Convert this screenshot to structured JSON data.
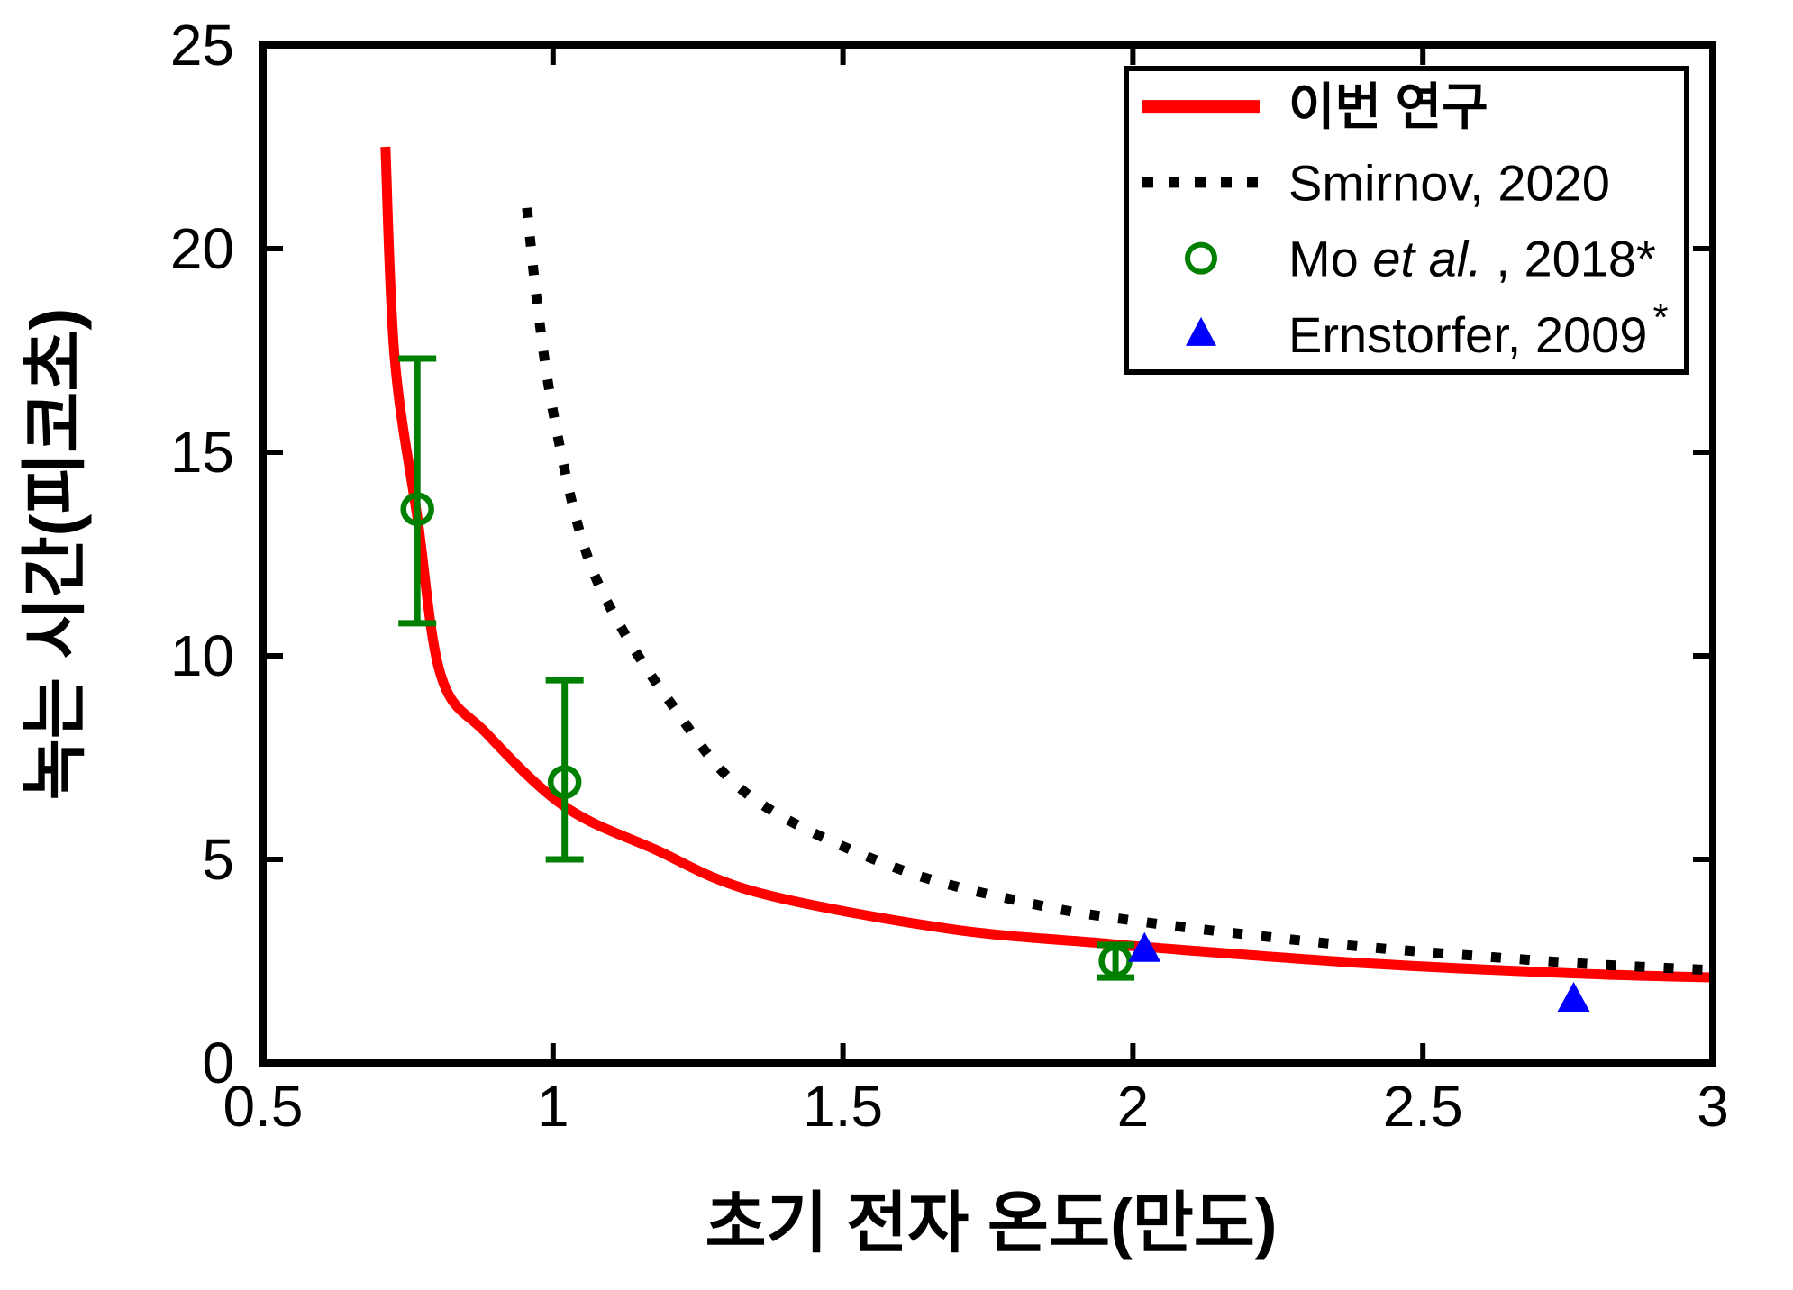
{
  "figure": {
    "background": "#ffffff"
  },
  "colors": {
    "this_study": "#ff0000",
    "smirnov": "#000000",
    "mo": "#008000",
    "ernstorfer": "#0000ff",
    "axis": "#000000"
  },
  "chart_data": {
    "type": "line",
    "title": "",
    "xlabel": "초기 전자 온도(만도)",
    "ylabel": "녹는 시간(피코초)",
    "xlim": [
      0.5,
      3.0
    ],
    "ylim": [
      0,
      25
    ],
    "grid": false,
    "x_tick_values": [
      0.5,
      1,
      1.5,
      2,
      2.5,
      3
    ],
    "x_tick_labels": [
      "0.5",
      "1",
      "1.5",
      "2",
      "2.5",
      "3"
    ],
    "y_tick_values": [
      0,
      5,
      10,
      15,
      20,
      25
    ],
    "y_tick_labels": [
      "0",
      "5",
      "10",
      "15",
      "20",
      "25"
    ],
    "legend": {
      "position": "upper-right",
      "entries": [
        {
          "marker": "line-solid",
          "color": "#ff0000",
          "segments": [
            {
              "text": "이번 연구",
              "bold": true
            }
          ]
        },
        {
          "marker": "line-dotted",
          "color": "#000000",
          "segments": [
            {
              "text": "Smirnov, 2020"
            }
          ]
        },
        {
          "marker": "circle-open",
          "color": "#008000",
          "segments": [
            {
              "text": "Mo "
            },
            {
              "text": "et al.",
              "italic": true
            },
            {
              "text": " , 2018*"
            }
          ]
        },
        {
          "marker": "triangle-filled",
          "color": "#0000ff",
          "segments": [
            {
              "text": "Ernstorfer, 2009"
            },
            {
              "text": "*",
              "super": true
            }
          ]
        }
      ]
    },
    "series": [
      {
        "id": "this-study",
        "name": "이번 연구",
        "type": "line",
        "style": "solid",
        "color": "#ff0000",
        "width": 11,
        "points": [
          [
            0.711,
            22.5
          ],
          [
            0.727,
            17.3
          ],
          [
            0.766,
            13.4
          ],
          [
            0.807,
            9.5
          ],
          [
            0.885,
            8.1
          ],
          [
            1.02,
            6.3
          ],
          [
            1.175,
            5.25
          ],
          [
            1.35,
            4.2
          ],
          [
            1.68,
            3.3
          ],
          [
            1.94,
            2.95
          ],
          [
            2.02,
            2.85
          ],
          [
            2.4,
            2.45
          ],
          [
            2.76,
            2.2
          ],
          [
            3.0,
            2.1
          ]
        ]
      },
      {
        "id": "smirnov-2020",
        "name": "Smirnov, 2020",
        "type": "line",
        "style": "dotted",
        "color": "#000000",
        "width": 11,
        "points": [
          [
            0.955,
            21.0
          ],
          [
            0.974,
            18.5
          ],
          [
            1.0,
            16.0
          ],
          [
            1.045,
            13.1
          ],
          [
            1.098,
            11.2
          ],
          [
            1.2,
            8.9
          ],
          [
            1.34,
            6.55
          ],
          [
            1.59,
            4.8
          ],
          [
            1.83,
            3.9
          ],
          [
            2.0,
            3.5
          ],
          [
            2.2,
            3.15
          ],
          [
            2.4,
            2.85
          ],
          [
            2.62,
            2.6
          ],
          [
            2.8,
            2.42
          ],
          [
            3.0,
            2.28
          ]
        ]
      },
      {
        "id": "mo-2018",
        "name": "Mo et al., 2018*",
        "type": "scatter",
        "marker": "circle-open",
        "color": "#008000",
        "points": [
          [
            0.766,
            13.6
          ],
          [
            1.02,
            6.9
          ],
          [
            1.97,
            2.5
          ]
        ],
        "yerr_low": [
          10.8,
          5.0,
          2.1
        ],
        "yerr_high": [
          17.3,
          9.4,
          2.9
        ]
      },
      {
        "id": "ernstorfer-2009",
        "name": "Ernstorfer, 2009*",
        "type": "scatter",
        "marker": "triangle-filled",
        "color": "#0000ff",
        "points": [
          [
            2.02,
            2.77
          ],
          [
            2.76,
            1.55
          ]
        ]
      }
    ]
  }
}
